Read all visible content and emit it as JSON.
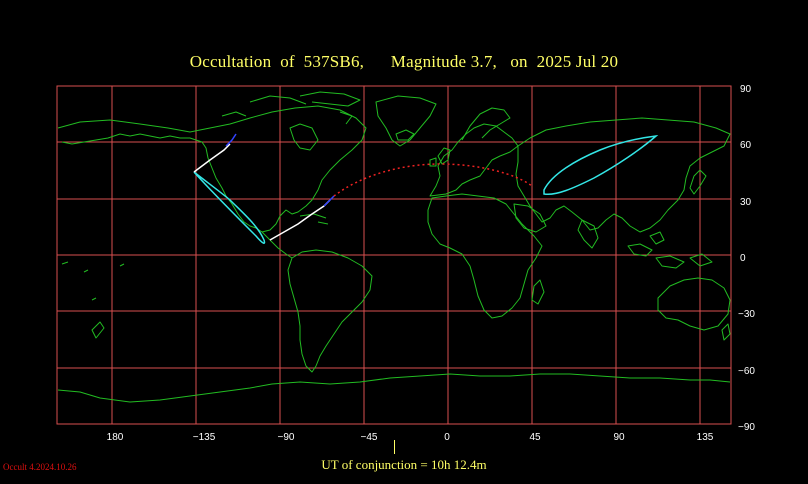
{
  "title": "Occultation  of  537SB6,      Magnitude 3.7,   on  2025 Jul 20",
  "lon_labels": [
    "180",
    "−135",
    "−90",
    "−45",
    "0",
    "45",
    "90",
    "135"
  ],
  "lat_labels": [
    "90",
    "60",
    "30",
    "0",
    "−30",
    "−60",
    "−90"
  ],
  "conjunction_text": "UT of conjunction = 10h 12.4m",
  "version_text": "Occult 4.2024.10.26",
  "colors": {
    "background": "#000000",
    "grid": "#d94f4f",
    "coastline": "#22bb22",
    "title": "#ffff66",
    "path_center": "#ffffff",
    "path_limits": "#33e6e6",
    "path_dotted": "#ee2222",
    "path_blue": "#3344ff"
  }
}
